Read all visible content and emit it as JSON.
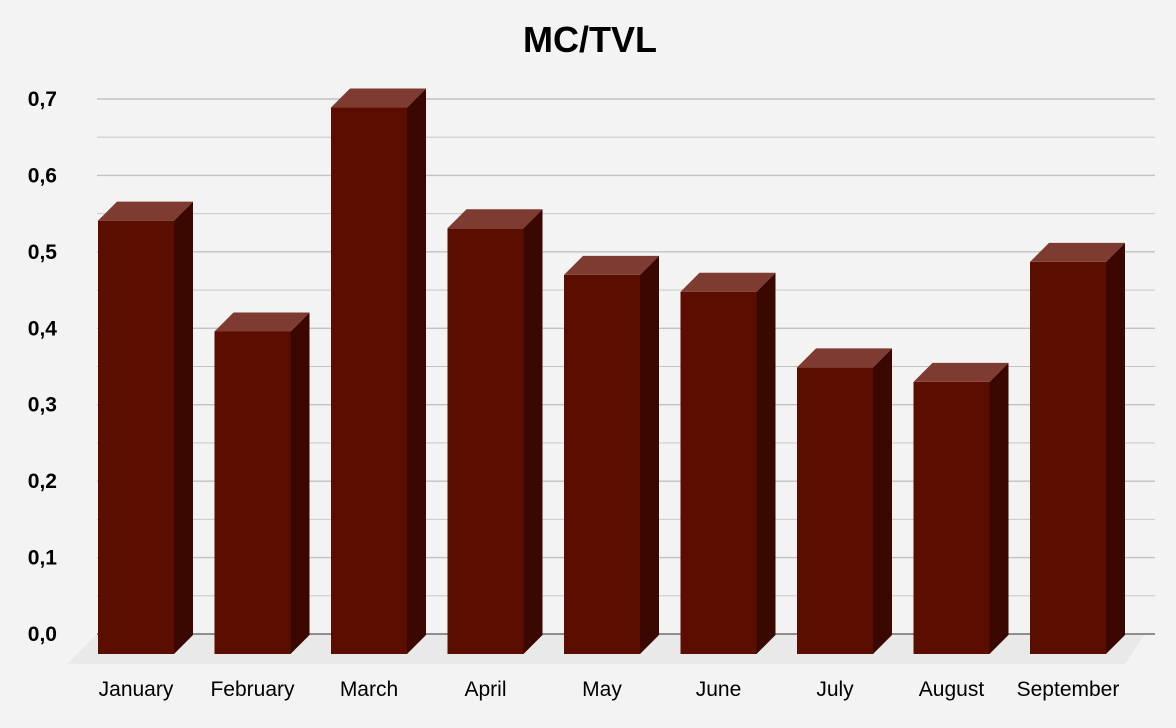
{
  "chart_data": {
    "type": "bar",
    "title": "MC/TVL",
    "xlabel": "",
    "ylabel": "",
    "categories": [
      "January",
      "February",
      "March",
      "April",
      "May",
      "June",
      "July",
      "August",
      "September"
    ],
    "series": [
      {
        "values": [
          0.567,
          0.422,
          0.715,
          0.557,
          0.496,
          0.474,
          0.375,
          0.356,
          0.513
        ]
      }
    ],
    "ylim": [
      0,
      0.7
    ],
    "yticks": [
      "0,0",
      "0,1",
      "0,2",
      "0,3",
      "0,4",
      "0,5",
      "0,6",
      "0,7"
    ],
    "grid": true,
    "minor_grid": true,
    "legend": "none",
    "style": "3d-column",
    "colors": {
      "bar_front": "#5b0e00",
      "bar_top": "#7e3b31",
      "bar_side": "#3a0800",
      "grid": "#c2c2c2",
      "floor": "#e9e9e9",
      "background": "#f3f3f3",
      "text": "#000000"
    }
  }
}
